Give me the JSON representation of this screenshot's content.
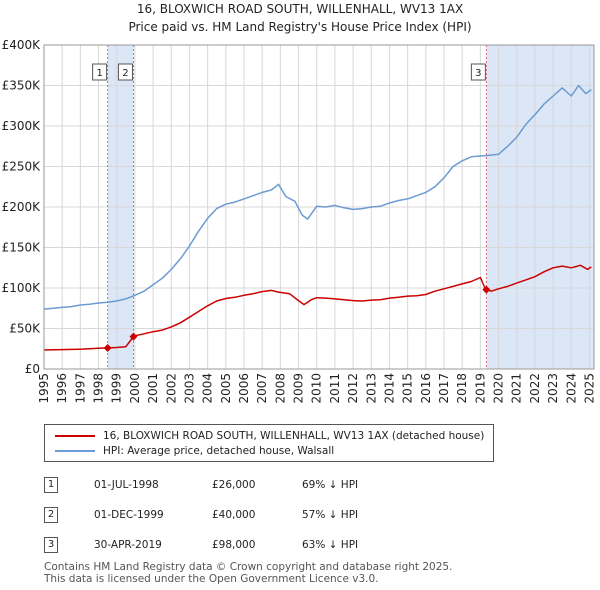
{
  "chart_data": {
    "type": "line",
    "title": "16, BLOXWICH ROAD SOUTH, WILLENHALL, WV13 1AX",
    "subtitle": "Price paid vs. HM Land Registry's House Price Index (HPI)",
    "xlabel": "",
    "ylabel": "",
    "xlim": [
      1995.0,
      2025.25
    ],
    "ylim": [
      0,
      400000
    ],
    "grid": true,
    "y_tick_labels": [
      "£0",
      "£50K",
      "£100K",
      "£150K",
      "£200K",
      "£250K",
      "£300K",
      "£350K",
      "£400K"
    ],
    "y_tick_values": [
      0,
      50000,
      100000,
      150000,
      200000,
      250000,
      300000,
      350000,
      400000
    ],
    "x_tick_labels": [
      "1995",
      "1996",
      "1997",
      "1998",
      "1999",
      "2000",
      "2001",
      "2002",
      "2003",
      "2004",
      "2005",
      "2006",
      "2007",
      "2008",
      "2009",
      "2010",
      "2011",
      "2012",
      "2013",
      "2014",
      "2015",
      "2016",
      "2017",
      "2018",
      "2019",
      "2020",
      "2021",
      "2022",
      "2023",
      "2024",
      "2025"
    ],
    "x_tick_values": [
      1995,
      1996,
      1997,
      1998,
      1999,
      2000,
      2001,
      2002,
      2003,
      2004,
      2005,
      2006,
      2007,
      2008,
      2009,
      2010,
      2011,
      2012,
      2013,
      2014,
      2015,
      2016,
      2017,
      2018,
      2019,
      2020,
      2021,
      2022,
      2023,
      2024,
      2025
    ],
    "series": [
      {
        "name": "16, BLOXWICH ROAD SOUTH, WILLENHALL, WV13 1AX (detached house)",
        "color": "#cc0000",
        "x": [
          1995.0,
          1995.5,
          1996.0,
          1996.5,
          1997.0,
          1997.5,
          1998.0,
          1998.5,
          1999.0,
          1999.5,
          1999.92,
          2000.0,
          2000.5,
          2001.0,
          2001.5,
          2002.0,
          2002.5,
          2003.0,
          2003.5,
          2004.0,
          2004.5,
          2005.0,
          2005.5,
          2006.0,
          2006.5,
          2007.0,
          2007.5,
          2007.9,
          2008.5,
          2009.0,
          2009.3,
          2009.7,
          2010.0,
          2010.5,
          2011.0,
          2011.5,
          2012.0,
          2012.5,
          2013.0,
          2013.5,
          2014.0,
          2014.5,
          2015.0,
          2015.5,
          2016.0,
          2016.5,
          2017.0,
          2017.5,
          2018.0,
          2018.5,
          2019.0,
          2019.25,
          2019.33,
          2019.6,
          2020.0,
          2020.5,
          2021.0,
          2021.5,
          2022.0,
          2022.5,
          2023.0,
          2023.5,
          2024.0,
          2024.5,
          2024.9,
          2025.1
        ],
        "values": [
          23500,
          23800,
          24000,
          24200,
          24500,
          25000,
          25500,
          26000,
          26500,
          27500,
          40000,
          41000,
          43500,
          46000,
          48000,
          52000,
          57000,
          64000,
          71000,
          78000,
          84000,
          87000,
          88500,
          91000,
          93000,
          95500,
          97000,
          95000,
          93000,
          84500,
          79500,
          85500,
          88000,
          87500,
          86500,
          85500,
          84500,
          84000,
          85000,
          85500,
          87500,
          88500,
          90000,
          90500,
          92000,
          96000,
          99000,
          102000,
          105000,
          108000,
          113000,
          100000,
          98000,
          96000,
          99000,
          102000,
          106000,
          110000,
          114000,
          120000,
          125000,
          127000,
          125000,
          128000,
          123000,
          126000
        ]
      },
      {
        "name": "HPI: Average price, detached house, Walsall",
        "color": "#6b9bd2",
        "x": [
          1995.0,
          1995.5,
          1996.0,
          1996.5,
          1997.0,
          1997.5,
          1998.0,
          1998.5,
          1999.0,
          1999.5,
          2000.0,
          2000.5,
          2001.0,
          2001.5,
          2002.0,
          2002.5,
          2003.0,
          2003.5,
          2004.0,
          2004.5,
          2005.0,
          2005.5,
          2006.0,
          2006.5,
          2007.0,
          2007.5,
          2007.9,
          2008.3,
          2008.8,
          2009.2,
          2009.5,
          2010.0,
          2010.5,
          2011.0,
          2011.5,
          2012.0,
          2012.5,
          2013.0,
          2013.5,
          2014.0,
          2014.5,
          2015.0,
          2015.5,
          2016.0,
          2016.5,
          2017.0,
          2017.5,
          2018.0,
          2018.5,
          2019.0,
          2019.5,
          2020.0,
          2020.5,
          2021.0,
          2021.5,
          2022.0,
          2022.5,
          2023.0,
          2023.5,
          2024.0,
          2024.4,
          2024.8,
          2025.1
        ],
        "values": [
          74000,
          75000,
          76000,
          77000,
          79000,
          80000,
          81500,
          82500,
          84000,
          86500,
          91000,
          96000,
          104000,
          112000,
          123000,
          136000,
          152000,
          170000,
          186000,
          198000,
          203500,
          206000,
          210000,
          214000,
          218000,
          221000,
          228000,
          213000,
          207000,
          190000,
          185000,
          201000,
          200000,
          202000,
          199000,
          197000,
          198000,
          200000,
          201000,
          205000,
          208000,
          210000,
          214000,
          218000,
          225000,
          236000,
          250000,
          257000,
          262000,
          263000,
          264000,
          265000,
          275000,
          286000,
          302000,
          314000,
          327000,
          337000,
          347000,
          337000,
          350000,
          340000,
          345000
        ]
      }
    ],
    "sales": [
      {
        "label": "1",
        "x": 1998.5,
        "value": 26000
      },
      {
        "label": "2",
        "x": 1999.92,
        "value": 40000
      },
      {
        "label": "3",
        "x": 2019.33,
        "value": 98000
      }
    ],
    "shading": [
      {
        "from": 1998.5,
        "to": 1999.92
      },
      {
        "from": 2019.33,
        "to": 2025.25
      }
    ]
  },
  "colors": {
    "price_line": "#cc0000",
    "hpi_line": "#6b9bd2",
    "shade": "#dbe6f6",
    "marker_line": "#e06666"
  },
  "legend": {
    "property": "16, BLOXWICH ROAD SOUTH, WILLENHALL, WV13 1AX (detached house)",
    "hpi": "HPI: Average price, detached house, Walsall"
  },
  "transactions": [
    {
      "num": "1",
      "date": "01-JUL-1998",
      "price": "£26,000",
      "hpi_diff": "69% ↓ HPI"
    },
    {
      "num": "2",
      "date": "01-DEC-1999",
      "price": "£40,000",
      "hpi_diff": "57% ↓ HPI"
    },
    {
      "num": "3",
      "date": "30-APR-2019",
      "price": "£98,000",
      "hpi_diff": "63% ↓ HPI"
    }
  ],
  "footer": {
    "line1": "Contains HM Land Registry data © Crown copyright and database right 2025.",
    "line2": "This data is licensed under the Open Government Licence v3.0."
  }
}
